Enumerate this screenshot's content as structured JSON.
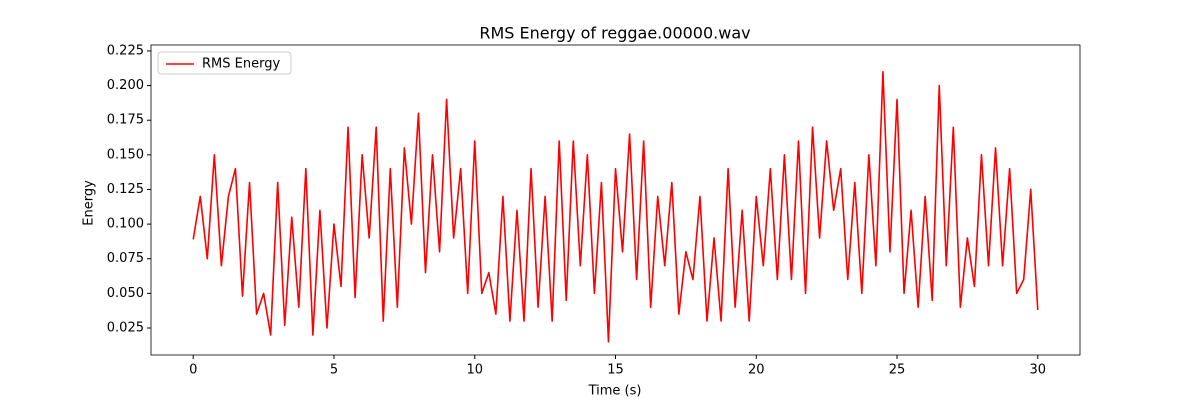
{
  "chart_data": {
    "type": "line",
    "title": "RMS Energy of reggae.00000.wav",
    "x_label": "Time (s)",
    "y_label": "Energy",
    "x": [
      0,
      0.25,
      0.5,
      0.75,
      1,
      1.25,
      1.5,
      1.75,
      2,
      2.25,
      2.5,
      2.75,
      3,
      3.25,
      3.5,
      3.75,
      4,
      4.25,
      4.5,
      4.75,
      5,
      5.25,
      5.5,
      5.75,
      6,
      6.25,
      6.5,
      6.75,
      7,
      7.25,
      7.5,
      7.75,
      8,
      8.25,
      8.5,
      8.75,
      9,
      9.25,
      9.5,
      9.75,
      10,
      10.25,
      10.5,
      10.75,
      11,
      11.25,
      11.5,
      11.75,
      12,
      12.25,
      12.5,
      12.75,
      13,
      13.25,
      13.5,
      13.75,
      14,
      14.25,
      14.5,
      14.75,
      15,
      15.25,
      15.5,
      15.75,
      16,
      16.25,
      16.5,
      16.75,
      17,
      17.25,
      17.5,
      17.75,
      18,
      18.25,
      18.5,
      18.75,
      19,
      19.25,
      19.5,
      19.75,
      20,
      20.25,
      20.5,
      20.75,
      21,
      21.25,
      21.5,
      21.75,
      22,
      22.25,
      22.5,
      22.75,
      23,
      23.25,
      23.5,
      23.75,
      24,
      24.25,
      24.5,
      24.75,
      25,
      25.25,
      25.5,
      25.75,
      26,
      26.25,
      26.5,
      26.75,
      27,
      27.25,
      27.5,
      27.75,
      28,
      28.25,
      28.5,
      28.75,
      29,
      29.25,
      29.5,
      29.75,
      30
    ],
    "series": [
      {
        "name": "RMS Energy",
        "color": "#ff0000",
        "values": [
          0.089,
          0.12,
          0.075,
          0.15,
          0.07,
          0.12,
          0.14,
          0.048,
          0.13,
          0.035,
          0.05,
          0.02,
          0.13,
          0.027,
          0.105,
          0.04,
          0.14,
          0.02,
          0.11,
          0.025,
          0.1,
          0.055,
          0.17,
          0.047,
          0.15,
          0.09,
          0.17,
          0.03,
          0.14,
          0.04,
          0.155,
          0.1,
          0.18,
          0.065,
          0.15,
          0.08,
          0.19,
          0.09,
          0.14,
          0.05,
          0.16,
          0.05,
          0.065,
          0.035,
          0.12,
          0.03,
          0.11,
          0.03,
          0.14,
          0.04,
          0.12,
          0.03,
          0.16,
          0.045,
          0.16,
          0.07,
          0.15,
          0.05,
          0.13,
          0.015,
          0.14,
          0.08,
          0.165,
          0.06,
          0.16,
          0.04,
          0.12,
          0.07,
          0.13,
          0.035,
          0.08,
          0.06,
          0.12,
          0.03,
          0.09,
          0.03,
          0.14,
          0.04,
          0.11,
          0.03,
          0.12,
          0.07,
          0.14,
          0.06,
          0.15,
          0.06,
          0.16,
          0.05,
          0.17,
          0.09,
          0.16,
          0.11,
          0.14,
          0.06,
          0.13,
          0.05,
          0.15,
          0.07,
          0.21,
          0.08,
          0.19,
          0.05,
          0.11,
          0.04,
          0.12,
          0.045,
          0.2,
          0.07,
          0.17,
          0.04,
          0.09,
          0.055,
          0.15,
          0.07,
          0.155,
          0.07,
          0.14,
          0.05,
          0.06,
          0.125,
          0.038
        ]
      }
    ],
    "xlim": [
      -1.5,
      31.5
    ],
    "ylim": [
      0.0055,
      0.2293
    ],
    "xticks": [
      0,
      5,
      10,
      15,
      20,
      25,
      30
    ],
    "yticks": [
      0.025,
      {
        "value": 0.05,
        "label": "0.050"
      },
      0.075,
      {
        "value": 0.1,
        "label": "0.100"
      },
      0.125,
      {
        "value": 0.15,
        "label": "0.150"
      },
      0.175,
      {
        "value": 0.2,
        "label": "0.200"
      },
      0.225
    ],
    "grid": false,
    "legend": "upper left"
  }
}
